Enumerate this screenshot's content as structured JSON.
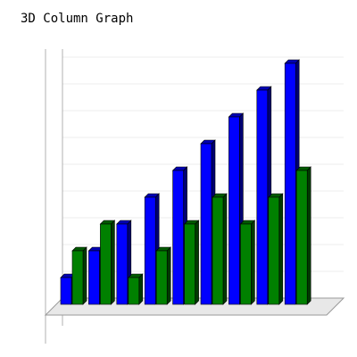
{
  "chart_data": {
    "type": "bar",
    "variant": "3d-column",
    "title": "3D Column Graph",
    "xlabel": "",
    "ylabel": "",
    "categories": [
      "",
      "",
      "",
      "",
      "",
      "",
      "",
      "",
      ""
    ],
    "series": [
      {
        "values": [
          1,
          2,
          3,
          4,
          5,
          6,
          7,
          8,
          9
        ],
        "color": "#0000ff"
      },
      {
        "values": [
          2,
          3,
          1,
          2,
          3,
          4,
          3,
          4,
          5
        ],
        "color": "#008000"
      }
    ],
    "ylim": [
      0,
      9
    ],
    "grid": true,
    "legend": "none"
  }
}
